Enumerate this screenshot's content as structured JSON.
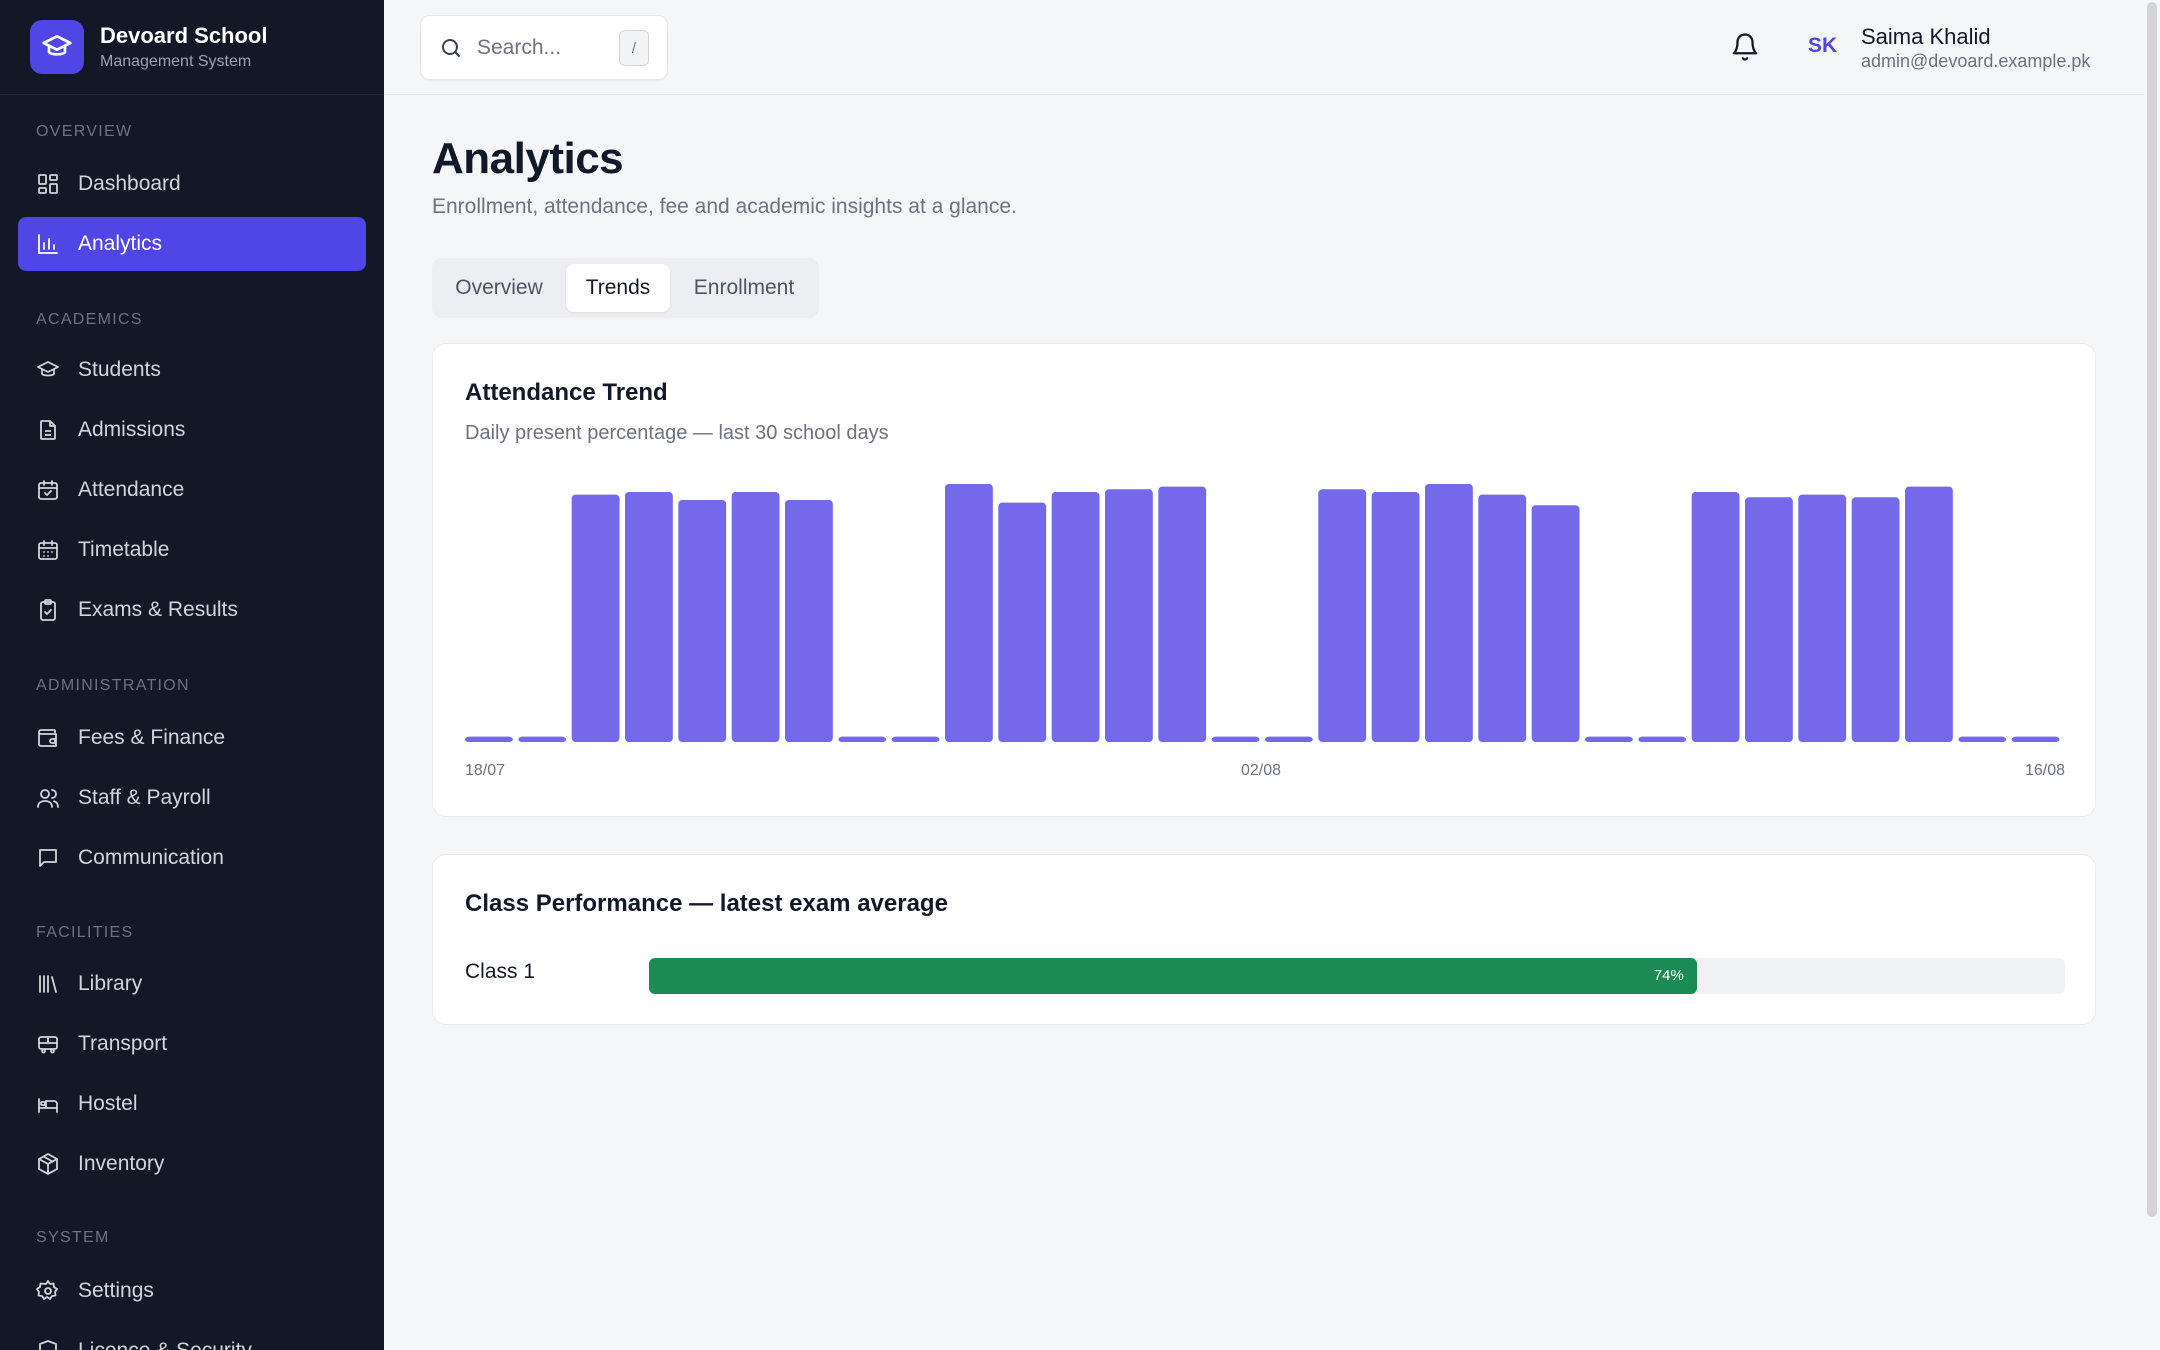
{
  "brand": {
    "name": "Devoard School",
    "subtitle": "Management System"
  },
  "sidebar": {
    "sections": [
      {
        "label": "Overview",
        "items": [
          {
            "label": "Dashboard",
            "icon": "grid-icon"
          },
          {
            "label": "Analytics",
            "icon": "bar-chart-icon",
            "active": true
          }
        ]
      },
      {
        "label": "Academics",
        "items": [
          {
            "label": "Students",
            "icon": "graduation-cap-icon"
          },
          {
            "label": "Admissions",
            "icon": "document-icon"
          },
          {
            "label": "Attendance",
            "icon": "calendar-check-icon"
          },
          {
            "label": "Timetable",
            "icon": "calendar-icon"
          },
          {
            "label": "Exams & Results",
            "icon": "clipboard-check-icon"
          }
        ]
      },
      {
        "label": "Administration",
        "items": [
          {
            "label": "Fees & Finance",
            "icon": "wallet-icon"
          },
          {
            "label": "Staff & Payroll",
            "icon": "users-icon"
          },
          {
            "label": "Communication",
            "icon": "message-icon"
          }
        ]
      },
      {
        "label": "Facilities",
        "items": [
          {
            "label": "Library",
            "icon": "library-icon"
          },
          {
            "label": "Transport",
            "icon": "bus-icon"
          },
          {
            "label": "Hostel",
            "icon": "bed-icon"
          },
          {
            "label": "Inventory",
            "icon": "package-icon"
          }
        ]
      },
      {
        "label": "System",
        "items": [
          {
            "label": "Settings",
            "icon": "gear-icon"
          },
          {
            "label": "Licence & Security",
            "icon": "shield-icon"
          }
        ]
      }
    ]
  },
  "topbar": {
    "search_placeholder": "Search...",
    "search_shortcut": "/",
    "user": {
      "initials": "SK",
      "name": "Saima Khalid",
      "email": "admin@devoard.example.pk"
    }
  },
  "page": {
    "title": "Analytics",
    "subtitle": "Enrollment, attendance, fee and academic insights at a glance.",
    "tabs": [
      {
        "label": "Overview"
      },
      {
        "label": "Trends",
        "active": true
      },
      {
        "label": "Enrollment"
      }
    ]
  },
  "attendance_card": {
    "title": "Attendance Trend",
    "subtitle": "Daily present percentage — last 30 school days"
  },
  "performance_card": {
    "title": "Class Performance — latest exam average",
    "rows": [
      {
        "label": "Class 1",
        "value": 74,
        "value_label": "74%"
      }
    ]
  },
  "colors": {
    "accent": "#4f46e5",
    "bar": "#7469ea",
    "performance": "#1b8a55",
    "sidebar_bg": "#121826"
  },
  "chart_data": {
    "type": "bar",
    "title": "Attendance Trend",
    "subtitle": "Daily present percentage — last 30 school days",
    "xlabel": "",
    "ylabel": "",
    "ylim": [
      0,
      100
    ],
    "x_tick_labels": [
      "18/07",
      "02/08",
      "16/08"
    ],
    "values": [
      2,
      2,
      93,
      94,
      91,
      94,
      91,
      2,
      2,
      97,
      90,
      94,
      95,
      96,
      2,
      2,
      95,
      94,
      97,
      93,
      89,
      2,
      2,
      94,
      92,
      93,
      92,
      96,
      2,
      2
    ],
    "grid": false,
    "legend": "none"
  }
}
